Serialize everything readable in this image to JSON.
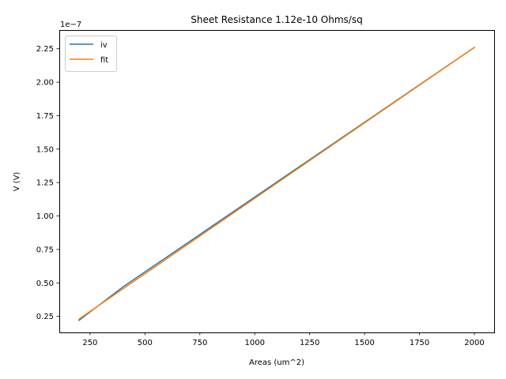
{
  "chart_data": {
    "type": "line",
    "title": "Sheet Resistance 1.12e-10 Ohms/sq",
    "xlabel": "Areas (um^2)",
    "ylabel": "V (V)",
    "y_offset_text": "1e−7",
    "xlim": [
      110,
      2090
    ],
    "ylim": [
      0.13,
      2.39
    ],
    "y_multiplier": 1e-07,
    "x_ticks": [
      250,
      500,
      750,
      1000,
      1250,
      1500,
      1750,
      2000
    ],
    "x_tick_labels": [
      "250",
      "500",
      "750",
      "1000",
      "1250",
      "1500",
      "1750",
      "2000"
    ],
    "y_ticks": [
      0.25,
      0.5,
      0.75,
      1.0,
      1.25,
      1.5,
      1.75,
      2.0,
      2.25
    ],
    "y_tick_labels": [
      "0.25",
      "0.50",
      "0.75",
      "1.00",
      "1.25",
      "1.50",
      "1.75",
      "2.00",
      "2.25"
    ],
    "grid": false,
    "legend_position": "top-left",
    "series": [
      {
        "name": "iv",
        "color": "#1f77b4",
        "x": [
          200,
          400,
          2000
        ],
        "y": [
          0.22,
          0.47,
          2.26
        ]
      },
      {
        "name": "fit",
        "color": "#ff7f0e",
        "x": [
          200,
          2000
        ],
        "y": [
          0.23,
          2.26
        ]
      }
    ]
  }
}
